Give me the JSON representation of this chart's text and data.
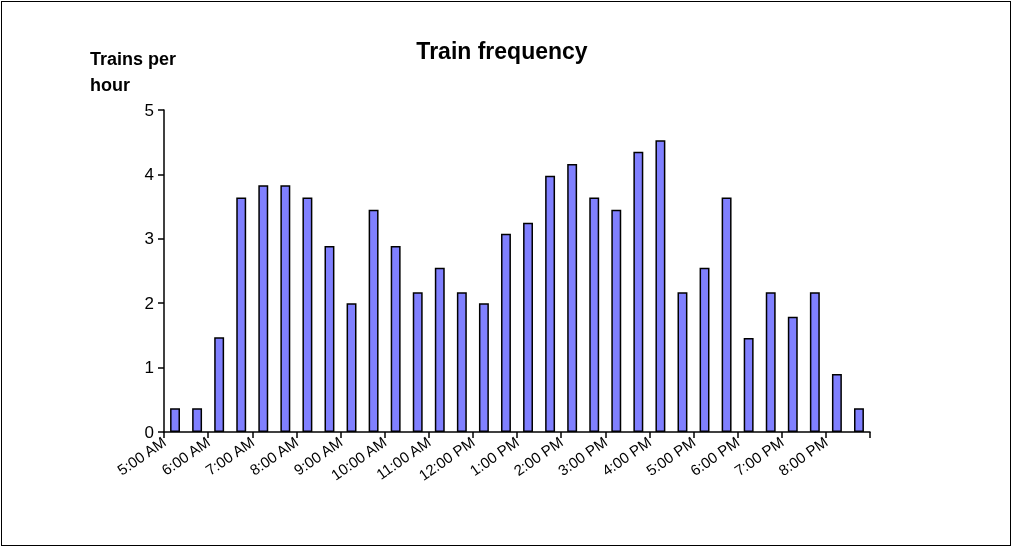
{
  "chart_data": {
    "type": "bar",
    "title": "Train frequency",
    "ylabel": "Trains per hour",
    "x": [
      5.25,
      5.75,
      6.25,
      6.75,
      7.25,
      7.75,
      8.25,
      8.75,
      9.25,
      9.75,
      10.25,
      10.75,
      11.25,
      11.75,
      12.25,
      12.75,
      13.25,
      13.75,
      14.25,
      14.75,
      15.25,
      15.75,
      16.25,
      16.75,
      17.25,
      17.75,
      18.25,
      18.75,
      19.25,
      19.75,
      20.25,
      20.75
    ],
    "values": [
      0.37,
      0.37,
      1.47,
      3.64,
      3.83,
      3.83,
      3.64,
      2.89,
      2.0,
      3.45,
      2.89,
      2.17,
      2.55,
      2.17,
      2.0,
      3.08,
      3.25,
      3.98,
      4.16,
      3.64,
      3.45,
      4.35,
      4.53,
      2.17,
      2.55,
      3.64,
      1.46,
      2.17,
      1.79,
      2.17,
      0.9,
      0.37
    ],
    "color": "#8080ff",
    "xlim": [
      5,
      21
    ],
    "xticks": [
      {
        "value": 5,
        "label": "5:00 AM"
      },
      {
        "value": 6,
        "label": "6:00 AM"
      },
      {
        "value": 7,
        "label": "7:00 AM"
      },
      {
        "value": 8,
        "label": "8:00 AM"
      },
      {
        "value": 9,
        "label": "9:00 AM"
      },
      {
        "value": 10,
        "label": "10:00 AM"
      },
      {
        "value": 11,
        "label": "11:00 AM"
      },
      {
        "value": 12,
        "label": "12:00 PM"
      },
      {
        "value": 13,
        "label": "1:00 PM"
      },
      {
        "value": 14,
        "label": "2:00 PM"
      },
      {
        "value": 15,
        "label": "3:00 PM"
      },
      {
        "value": 16,
        "label": "4:00 PM"
      },
      {
        "value": 17,
        "label": "5:00 PM"
      },
      {
        "value": 18,
        "label": "6:00 PM"
      },
      {
        "value": 19,
        "label": "7:00 PM"
      },
      {
        "value": 20,
        "label": "8:00 PM"
      },
      {
        "value": 21,
        "label": null
      }
    ],
    "ylim": [
      0,
      5
    ],
    "yticks": [
      0,
      1,
      2,
      3,
      4,
      5
    ],
    "grid": false
  }
}
